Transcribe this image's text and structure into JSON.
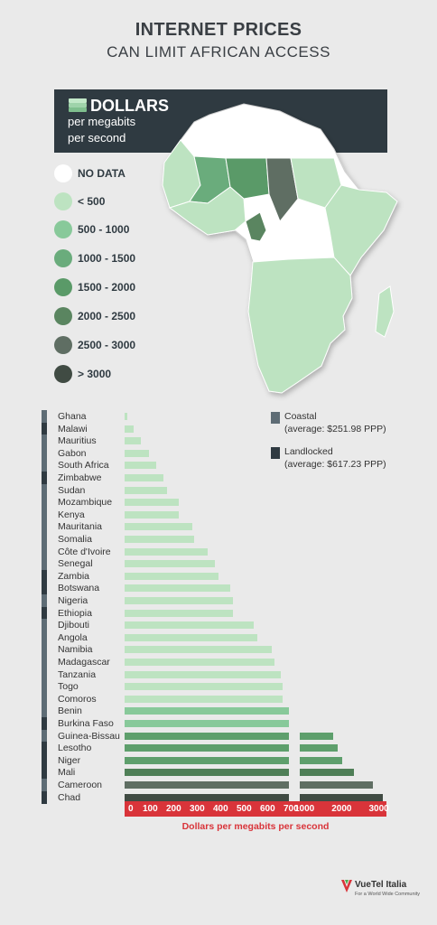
{
  "title": "INTERNET PRICES",
  "subtitle": "CAN LIMIT AFRICAN ACCESS",
  "header": {
    "main": "DOLLARS",
    "sub1": "per megabits",
    "sub2": "per second"
  },
  "legend": [
    {
      "label": "NO DATA",
      "color": "#ffffff"
    },
    {
      "label": "< 500",
      "color": "#bde3c1"
    },
    {
      "label": "500 - 1000",
      "color": "#88c99a"
    },
    {
      "label": "1000 - 1500",
      "color": "#6aac7c"
    },
    {
      "label": "1500 - 2000",
      "color": "#5a9a68"
    },
    {
      "label": "2000 - 2500",
      "color": "#5a8560"
    },
    {
      "label": "2500 - 3000",
      "color": "#5f6e63"
    },
    {
      "label": "> 3000",
      "color": "#404b43"
    }
  ],
  "colors": {
    "coastal": "#5e6c75",
    "landlocked": "#2f3a41",
    "axis": "#d9343a"
  },
  "chart_data": {
    "type": "bar",
    "orientation": "horizontal",
    "categories": [
      "Ghana",
      "Malawi",
      "Mauritius",
      "Gabon",
      "South Africa",
      "Zimbabwe",
      "Sudan",
      "Mozambique",
      "Kenya",
      "Mauritania",
      "Somalia",
      "Côte d'Ivoire",
      "Senegal",
      "Zambia",
      "Botswana",
      "Nigeria",
      "Ethiopia",
      "Djibouti",
      "Angola",
      "Namibia",
      "Madagascar",
      "Tanzania",
      "Togo",
      "Comoros",
      "Benin",
      "Burkina Faso",
      "Guinea-Bissau",
      "Lesotho",
      "Niger",
      "Mali",
      "Cameroon",
      "Chad"
    ],
    "values": [
      10,
      40,
      70,
      105,
      135,
      165,
      180,
      230,
      230,
      290,
      295,
      355,
      385,
      400,
      450,
      460,
      460,
      550,
      565,
      625,
      640,
      665,
      672,
      672,
      740,
      780,
      1900,
      2020,
      2140,
      2450,
      2960,
      3230
    ],
    "group": [
      "coastal",
      "landlocked",
      "coastal",
      "coastal",
      "coastal",
      "landlocked",
      "coastal",
      "coastal",
      "coastal",
      "coastal",
      "coastal",
      "coastal",
      "coastal",
      "landlocked",
      "landlocked",
      "coastal",
      "landlocked",
      "coastal",
      "coastal",
      "coastal",
      "coastal",
      "coastal",
      "coastal",
      "coastal",
      "coastal",
      "landlocked",
      "coastal",
      "landlocked",
      "landlocked",
      "landlocked",
      "coastal",
      "landlocked"
    ],
    "bar_colors": [
      "#bde3c1",
      "#bde3c1",
      "#bde3c1",
      "#bde3c1",
      "#bde3c1",
      "#bde3c1",
      "#bde3c1",
      "#bde3c1",
      "#bde3c1",
      "#bde3c1",
      "#bde3c1",
      "#bde3c1",
      "#bde3c1",
      "#bde3c1",
      "#bde3c1",
      "#bde3c1",
      "#bde3c1",
      "#bde3c1",
      "#bde3c1",
      "#bde3c1",
      "#bde3c1",
      "#bde3c1",
      "#bde3c1",
      "#bde3c1",
      "#88c99a",
      "#88c99a",
      "#5e9f6c",
      "#5e9f6c",
      "#5e9f6c",
      "#4f7f57",
      "#5f6e63",
      "#404b43"
    ],
    "x_ticks": [
      "0",
      "100",
      "200",
      "300",
      "400",
      "500",
      "600",
      "700",
      "1000",
      "2000",
      "3000"
    ],
    "x_tick_values": [
      0,
      100,
      200,
      300,
      400,
      500,
      600,
      700,
      1000,
      2000,
      3000
    ],
    "axis_break": 700,
    "xlabel": "Dollars per megabits per second",
    "series_keys": [
      {
        "name": "Coastal",
        "note": "(average: $251.98 PPP)"
      },
      {
        "name": "Landlocked",
        "note": "(average: $617.23 PPP)"
      }
    ]
  },
  "brand": {
    "name": "VueTel Italia",
    "tagline": "For a World Wide Community"
  }
}
